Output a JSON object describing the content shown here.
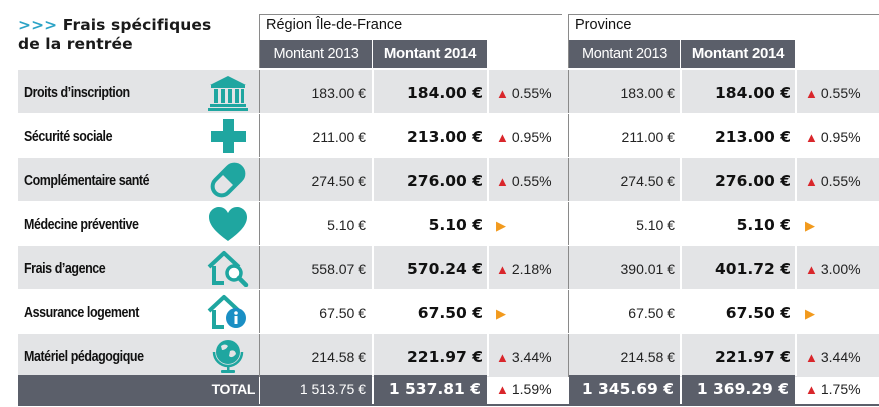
{
  "title": {
    "arrows": ">>>",
    "line1": "Frais spécifiques",
    "line2": "de la rentrée"
  },
  "groups": [
    {
      "name": "Région Île-de-France",
      "col2013": "Montant 2013",
      "col2014": "Montant 2014"
    },
    {
      "name": "Province",
      "col2013": "Montant 2013",
      "col2014": "Montant 2014"
    }
  ],
  "rows": [
    {
      "label": "Droits d’inscription",
      "icon": "university-building-icon",
      "idf": {
        "v2013": "183.00 €",
        "v2014": "184.00 €",
        "trend": "up",
        "change": "0.55%"
      },
      "prov": {
        "v2013": "183.00 €",
        "v2014": "184.00 €",
        "trend": "up",
        "change": "0.55%"
      }
    },
    {
      "label": "Sécurité sociale",
      "icon": "medical-cross-icon",
      "idf": {
        "v2013": "211.00 €",
        "v2014": "213.00 €",
        "trend": "up",
        "change": "0.95%"
      },
      "prov": {
        "v2013": "211.00 €",
        "v2014": "213.00 €",
        "trend": "up",
        "change": "0.95%"
      }
    },
    {
      "label": "Complémentaire santé",
      "icon": "pill-capsule-icon",
      "idf": {
        "v2013": "274.50 €",
        "v2014": "276.00 €",
        "trend": "up",
        "change": "0.55%"
      },
      "prov": {
        "v2013": "274.50 €",
        "v2014": "276.00 €",
        "trend": "up",
        "change": "0.55%"
      }
    },
    {
      "label": "Médecine préventive",
      "icon": "heart-icon",
      "idf": {
        "v2013": "5.10 €",
        "v2014": "5.10 €",
        "trend": "flat",
        "change": ""
      },
      "prov": {
        "v2013": "5.10 €",
        "v2014": "5.10 €",
        "trend": "flat",
        "change": ""
      }
    },
    {
      "label": "Frais d’agence",
      "icon": "house-search-icon",
      "idf": {
        "v2013": "558.07 €",
        "v2014": "570.24 €",
        "trend": "up",
        "change": "2.18%"
      },
      "prov": {
        "v2013": "390.01 €",
        "v2014": "401.72 €",
        "trend": "up",
        "change": "3.00%"
      }
    },
    {
      "label": "Assurance logement",
      "icon": "house-info-icon",
      "idf": {
        "v2013": "67.50 €",
        "v2014": "67.50 €",
        "trend": "flat",
        "change": ""
      },
      "prov": {
        "v2013": "67.50 €",
        "v2014": "67.50 €",
        "trend": "flat",
        "change": ""
      }
    },
    {
      "label": "Matériel pédagogique",
      "icon": "globe-icon",
      "idf": {
        "v2013": "214.58 €",
        "v2014": "221.97 €",
        "trend": "up",
        "change": "3.44%"
      },
      "prov": {
        "v2013": "214.58 €",
        "v2014": "221.97 €",
        "trend": "up",
        "change": "3.44%"
      }
    }
  ],
  "total": {
    "label": "TOTAL",
    "idf": {
      "v2013": "1 513.75 €",
      "v2014": "1 537.81 €",
      "change": "1.59%"
    },
    "prov": {
      "v2013": "1 345.69 €",
      "v2014": "1 369.29 €",
      "change": "1.75%"
    }
  },
  "colors": {
    "accent": "#2ba3c6",
    "header_bg": "#5b5f6a",
    "shade": "#e3e4e6",
    "up": "#d9262b",
    "flat": "#f29a1d"
  }
}
